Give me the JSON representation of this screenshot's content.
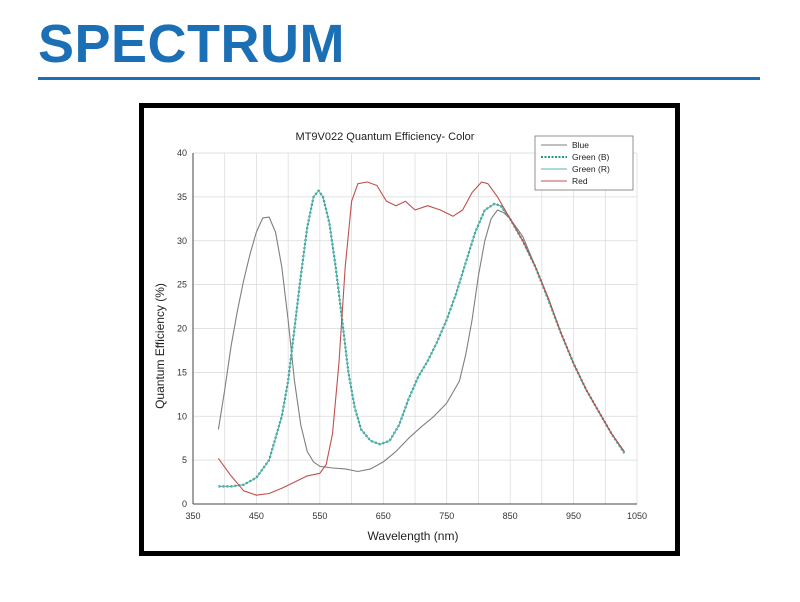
{
  "slide": {
    "title": "SPECTRUM",
    "title_color": "#1b6fb5",
    "rule_color": "#1b6fb5"
  },
  "chart_data": {
    "type": "line",
    "title": "MT9V022 Quantum Efficiency- Color",
    "xlabel": "Wavelength (nm)",
    "ylabel": "Quantum Efficiency (%)",
    "xlim": [
      350,
      1050
    ],
    "ylim": [
      0,
      40
    ],
    "xticks": [
      350,
      450,
      550,
      650,
      750,
      850,
      950,
      1050
    ],
    "yticks": [
      0,
      5,
      10,
      15,
      20,
      25,
      30,
      35,
      40
    ],
    "grid": true,
    "legend_position": "top-right",
    "series": [
      {
        "name": "Blue",
        "color": "#7f7f7f",
        "style": "solid",
        "points": [
          [
            390,
            8.5
          ],
          [
            400,
            13
          ],
          [
            410,
            18
          ],
          [
            420,
            22
          ],
          [
            430,
            25.5
          ],
          [
            440,
            28.5
          ],
          [
            450,
            31
          ],
          [
            460,
            32.6
          ],
          [
            470,
            32.7
          ],
          [
            480,
            31
          ],
          [
            490,
            27
          ],
          [
            500,
            21
          ],
          [
            510,
            14
          ],
          [
            520,
            9
          ],
          [
            530,
            6
          ],
          [
            540,
            4.8
          ],
          [
            550,
            4.3
          ],
          [
            570,
            4.1
          ],
          [
            590,
            4
          ],
          [
            610,
            3.7
          ],
          [
            630,
            4
          ],
          [
            650,
            4.8
          ],
          [
            670,
            6
          ],
          [
            690,
            7.5
          ],
          [
            710,
            8.8
          ],
          [
            730,
            10
          ],
          [
            750,
            11.5
          ],
          [
            770,
            14
          ],
          [
            780,
            17
          ],
          [
            790,
            21
          ],
          [
            800,
            26
          ],
          [
            810,
            30
          ],
          [
            820,
            32.5
          ],
          [
            830,
            33.5
          ],
          [
            840,
            33.2
          ],
          [
            850,
            32.5
          ],
          [
            870,
            30.5
          ],
          [
            890,
            27
          ],
          [
            910,
            23.5
          ],
          [
            930,
            19.5
          ],
          [
            950,
            16
          ],
          [
            970,
            13
          ],
          [
            990,
            10.5
          ],
          [
            1010,
            8
          ],
          [
            1030,
            6
          ]
        ]
      },
      {
        "name": "Green (B)",
        "color": "#1f9a88",
        "style": "dotted",
        "points": [
          [
            390,
            2
          ],
          [
            410,
            2
          ],
          [
            430,
            2.2
          ],
          [
            450,
            3
          ],
          [
            470,
            5
          ],
          [
            490,
            10
          ],
          [
            500,
            14
          ],
          [
            510,
            20
          ],
          [
            520,
            26
          ],
          [
            530,
            31.5
          ],
          [
            540,
            35
          ],
          [
            548,
            35.7
          ],
          [
            555,
            35
          ],
          [
            565,
            32
          ],
          [
            575,
            27
          ],
          [
            585,
            21
          ],
          [
            595,
            15
          ],
          [
            605,
            11
          ],
          [
            615,
            8.5
          ],
          [
            630,
            7.2
          ],
          [
            645,
            6.8
          ],
          [
            660,
            7.2
          ],
          [
            675,
            9
          ],
          [
            690,
            12
          ],
          [
            705,
            14.5
          ],
          [
            720,
            16.3
          ],
          [
            735,
            18.5
          ],
          [
            750,
            21
          ],
          [
            765,
            24
          ],
          [
            780,
            27.5
          ],
          [
            795,
            31
          ],
          [
            810,
            33.5
          ],
          [
            825,
            34.2
          ],
          [
            835,
            34
          ],
          [
            850,
            32.5
          ],
          [
            870,
            30
          ],
          [
            890,
            27
          ],
          [
            910,
            23.3
          ],
          [
            930,
            19.5
          ],
          [
            950,
            16
          ],
          [
            970,
            13
          ],
          [
            990,
            10.5
          ],
          [
            1010,
            8
          ],
          [
            1030,
            5.8
          ]
        ]
      },
      {
        "name": "Green (R)",
        "color": "#5bb3b0",
        "style": "solid",
        "points": [
          [
            390,
            2
          ],
          [
            410,
            2
          ],
          [
            430,
            2.2
          ],
          [
            450,
            3
          ],
          [
            470,
            5
          ],
          [
            490,
            10
          ],
          [
            500,
            14
          ],
          [
            510,
            20
          ],
          [
            520,
            26
          ],
          [
            530,
            31.5
          ],
          [
            540,
            35
          ],
          [
            548,
            35.7
          ],
          [
            555,
            35
          ],
          [
            565,
            32
          ],
          [
            575,
            27
          ],
          [
            585,
            21
          ],
          [
            595,
            15
          ],
          [
            605,
            11
          ],
          [
            615,
            8.5
          ],
          [
            630,
            7.2
          ],
          [
            645,
            6.8
          ],
          [
            660,
            7.2
          ],
          [
            675,
            9
          ],
          [
            690,
            12
          ],
          [
            705,
            14.5
          ],
          [
            720,
            16.3
          ],
          [
            735,
            18.5
          ],
          [
            750,
            21
          ],
          [
            765,
            24
          ],
          [
            780,
            27.5
          ],
          [
            795,
            31
          ],
          [
            810,
            33.5
          ],
          [
            825,
            34.2
          ],
          [
            835,
            34
          ],
          [
            850,
            32.5
          ],
          [
            870,
            30
          ],
          [
            890,
            27
          ],
          [
            910,
            23.3
          ],
          [
            930,
            19.5
          ],
          [
            950,
            16
          ],
          [
            970,
            13
          ],
          [
            990,
            10.5
          ],
          [
            1010,
            8
          ],
          [
            1030,
            5.8
          ]
        ]
      },
      {
        "name": "Red",
        "color": "#c0504d",
        "style": "solid",
        "points": [
          [
            390,
            5.2
          ],
          [
            410,
            3.2
          ],
          [
            430,
            1.5
          ],
          [
            450,
            1
          ],
          [
            470,
            1.2
          ],
          [
            490,
            1.8
          ],
          [
            510,
            2.5
          ],
          [
            530,
            3.2
          ],
          [
            550,
            3.5
          ],
          [
            560,
            4.5
          ],
          [
            570,
            8
          ],
          [
            580,
            16
          ],
          [
            590,
            27
          ],
          [
            600,
            34.5
          ],
          [
            610,
            36.5
          ],
          [
            625,
            36.7
          ],
          [
            640,
            36.3
          ],
          [
            655,
            34.5
          ],
          [
            670,
            34
          ],
          [
            685,
            34.5
          ],
          [
            700,
            33.5
          ],
          [
            720,
            34
          ],
          [
            740,
            33.5
          ],
          [
            760,
            32.8
          ],
          [
            775,
            33.5
          ],
          [
            790,
            35.5
          ],
          [
            805,
            36.7
          ],
          [
            815,
            36.5
          ],
          [
            830,
            35
          ],
          [
            850,
            32.5
          ],
          [
            870,
            30
          ],
          [
            890,
            27
          ],
          [
            910,
            23.5
          ],
          [
            930,
            19.5
          ],
          [
            950,
            16
          ],
          [
            970,
            13
          ],
          [
            990,
            10.5
          ],
          [
            1010,
            8
          ],
          [
            1030,
            6
          ]
        ]
      }
    ]
  }
}
